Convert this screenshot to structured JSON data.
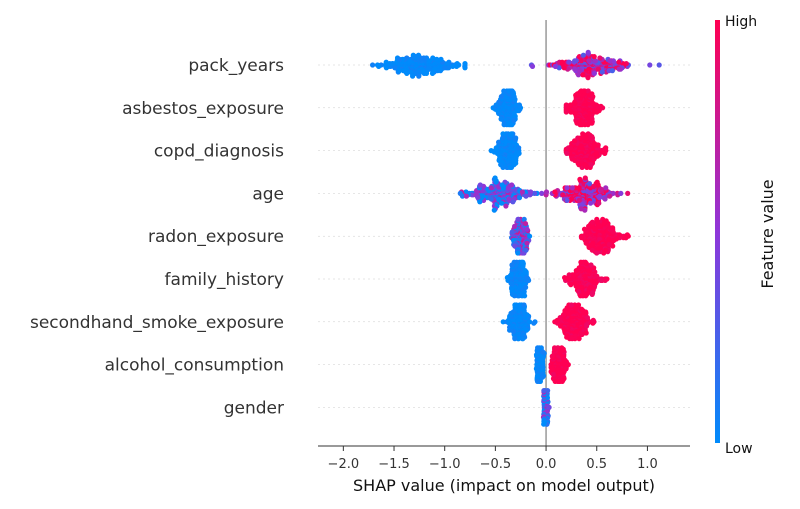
{
  "chart_data": {
    "type": "scatter",
    "subtype": "shap-beeswarm",
    "xlabel": "SHAP value (impact on model output)",
    "xlim": [
      -2.25,
      1.42
    ],
    "xticks": [
      "−2.0",
      "−1.5",
      "−1.0",
      "−0.5",
      "0.0",
      "0.5",
      "1.0"
    ],
    "xtick_values": [
      -2.0,
      -1.5,
      -1.0,
      -0.5,
      0.0,
      0.5,
      1.0
    ],
    "colorbar": {
      "title": "Feature value",
      "high_label": "High",
      "low_label": "Low",
      "low_color": "#008bfb",
      "high_color": "#ff0052"
    },
    "features": [
      {
        "name": "pack_years",
        "groups": [
          {
            "center": -1.25,
            "spread": 0.38,
            "min": -2.1,
            "max": -0.8,
            "feature": 0.0
          },
          {
            "center": 0.45,
            "spread": 0.35,
            "min": -0.2,
            "max": 1.25,
            "feature": 0.7
          }
        ]
      },
      {
        "name": "asbestos_exposure",
        "groups": [
          {
            "center": -0.38,
            "spread": 0.1,
            "min": -0.6,
            "max": -0.2,
            "feature": 0.0
          },
          {
            "center": 0.38,
            "spread": 0.14,
            "min": 0.2,
            "max": 0.85,
            "feature": 1.0
          }
        ]
      },
      {
        "name": "copd_diagnosis",
        "groups": [
          {
            "center": -0.38,
            "spread": 0.1,
            "min": -0.65,
            "max": -0.15,
            "feature": 0.0
          },
          {
            "center": 0.38,
            "spread": 0.16,
            "min": 0.2,
            "max": 0.9,
            "feature": 1.0
          }
        ]
      },
      {
        "name": "age",
        "groups": [
          {
            "center": -0.45,
            "spread": 0.3,
            "min": -0.85,
            "max": 0.0,
            "feature": 0.25
          },
          {
            "center": 0.38,
            "spread": 0.25,
            "min": 0.0,
            "max": 0.85,
            "feature": 0.75
          }
        ]
      },
      {
        "name": "radon_exposure",
        "groups": [
          {
            "center": -0.25,
            "spread": 0.07,
            "min": -0.4,
            "max": -0.12,
            "feature": 0.35
          },
          {
            "center": 0.55,
            "spread": 0.2,
            "min": 0.35,
            "max": 1.0,
            "feature": 1.0
          }
        ]
      },
      {
        "name": "family_history",
        "groups": [
          {
            "center": -0.27,
            "spread": 0.08,
            "min": -0.45,
            "max": -0.1,
            "feature": 0.0
          },
          {
            "center": 0.38,
            "spread": 0.14,
            "min": 0.12,
            "max": 0.6,
            "feature": 1.0
          }
        ]
      },
      {
        "name": "secondhand_smoke_exposure",
        "groups": [
          {
            "center": -0.27,
            "spread": 0.09,
            "min": -0.45,
            "max": -0.05,
            "feature": 0.0
          },
          {
            "center": 0.28,
            "spread": 0.15,
            "min": 0.08,
            "max": 0.58,
            "feature": 1.0
          }
        ]
      },
      {
        "name": "alcohol_consumption",
        "groups": [
          {
            "center": -0.06,
            "spread": 0.03,
            "min": -0.15,
            "max": 0.0,
            "feature": 0.0
          },
          {
            "center": 0.12,
            "spread": 0.06,
            "min": 0.05,
            "max": 0.33,
            "feature": 1.0
          }
        ]
      },
      {
        "name": "gender",
        "groups": [
          {
            "center": 0.0,
            "spread": 0.02,
            "min": -0.05,
            "max": 0.05,
            "feature": 0.2
          },
          {
            "center": 0.0,
            "spread": 0.02,
            "min": -0.05,
            "max": 0.12,
            "feature": 0.8
          }
        ]
      }
    ]
  }
}
